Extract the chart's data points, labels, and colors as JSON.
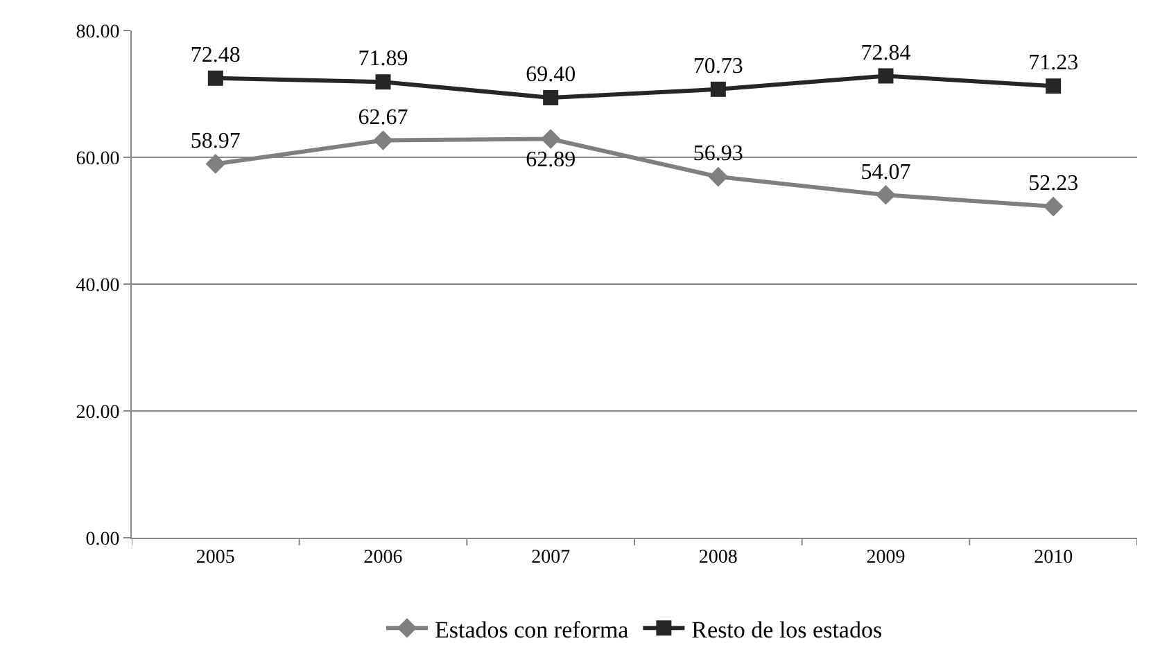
{
  "chart_data": {
    "type": "line",
    "categories": [
      "2005",
      "2006",
      "2007",
      "2008",
      "2009",
      "2010"
    ],
    "series": [
      {
        "name": "Estados con reforma",
        "color": "#7f7f7f",
        "marker": "diamond",
        "values": [
          58.97,
          62.67,
          62.89,
          56.93,
          54.07,
          52.23
        ],
        "value_labels": [
          "58.97",
          "62.67",
          "62.89",
          "56.93",
          "54.07",
          "52.23"
        ]
      },
      {
        "name": "Resto de los estados",
        "color": "#262626",
        "marker": "square",
        "values": [
          72.48,
          71.89,
          69.4,
          70.73,
          72.84,
          71.23
        ],
        "value_labels": [
          "72.48",
          "71.89",
          "69.40",
          "70.73",
          "72.84",
          "71.23"
        ]
      }
    ],
    "ylim": [
      0,
      80
    ],
    "yticks": [
      {
        "value": 0,
        "label": "0.00"
      },
      {
        "value": 20,
        "label": "20.00"
      },
      {
        "value": 40,
        "label": "40.00"
      },
      {
        "value": 60,
        "label": "60.00"
      },
      {
        "value": 80,
        "label": "80.00"
      }
    ],
    "grid": "y",
    "legend": "bottom",
    "line_style": "solid"
  }
}
